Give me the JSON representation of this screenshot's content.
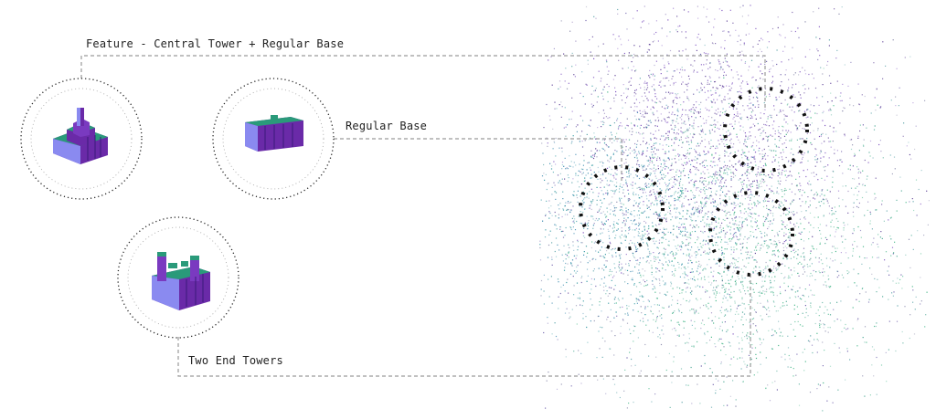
{
  "labels": {
    "feature": "Feature - Central Tower + Regular Base",
    "regular_base": "Regular Base",
    "two_end_towers": "Two End Towers"
  },
  "colors": {
    "purple": "#4b2a8a",
    "violet": "#6f3fb8",
    "teal": "#1f8f9a",
    "green": "#2fae7a",
    "model_top": "#2a9a7a",
    "model_side": "#6a2aa8",
    "model_edge": "#8a8af0",
    "connector": "#9a9a9a",
    "marker": "#111111"
  },
  "icons": [
    "central-tower-model-icon",
    "regular-base-model-icon",
    "two-end-towers-model-icon"
  ]
}
